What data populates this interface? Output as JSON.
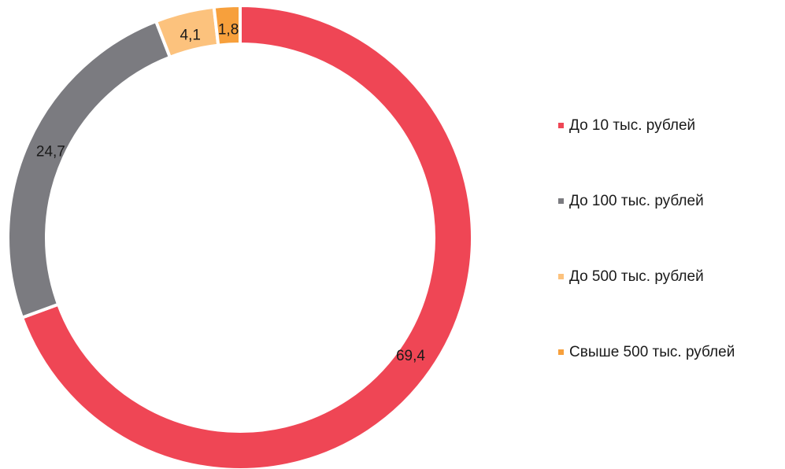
{
  "chart_data": {
    "type": "pie",
    "donut": true,
    "categories": [
      "До 10 тыс. рублей",
      "До 100 тыс. рублей",
      "До 500 тыс. рублей",
      "Свыше 500 тыс. рублей"
    ],
    "values": [
      69.4,
      24.7,
      4.1,
      1.8
    ],
    "value_labels": [
      "69,4",
      "24,7",
      "4,1",
      "1,8"
    ],
    "colors": [
      "#ef4655",
      "#7b7b80",
      "#fcc27d",
      "#f7a03c"
    ],
    "legend": "right"
  }
}
